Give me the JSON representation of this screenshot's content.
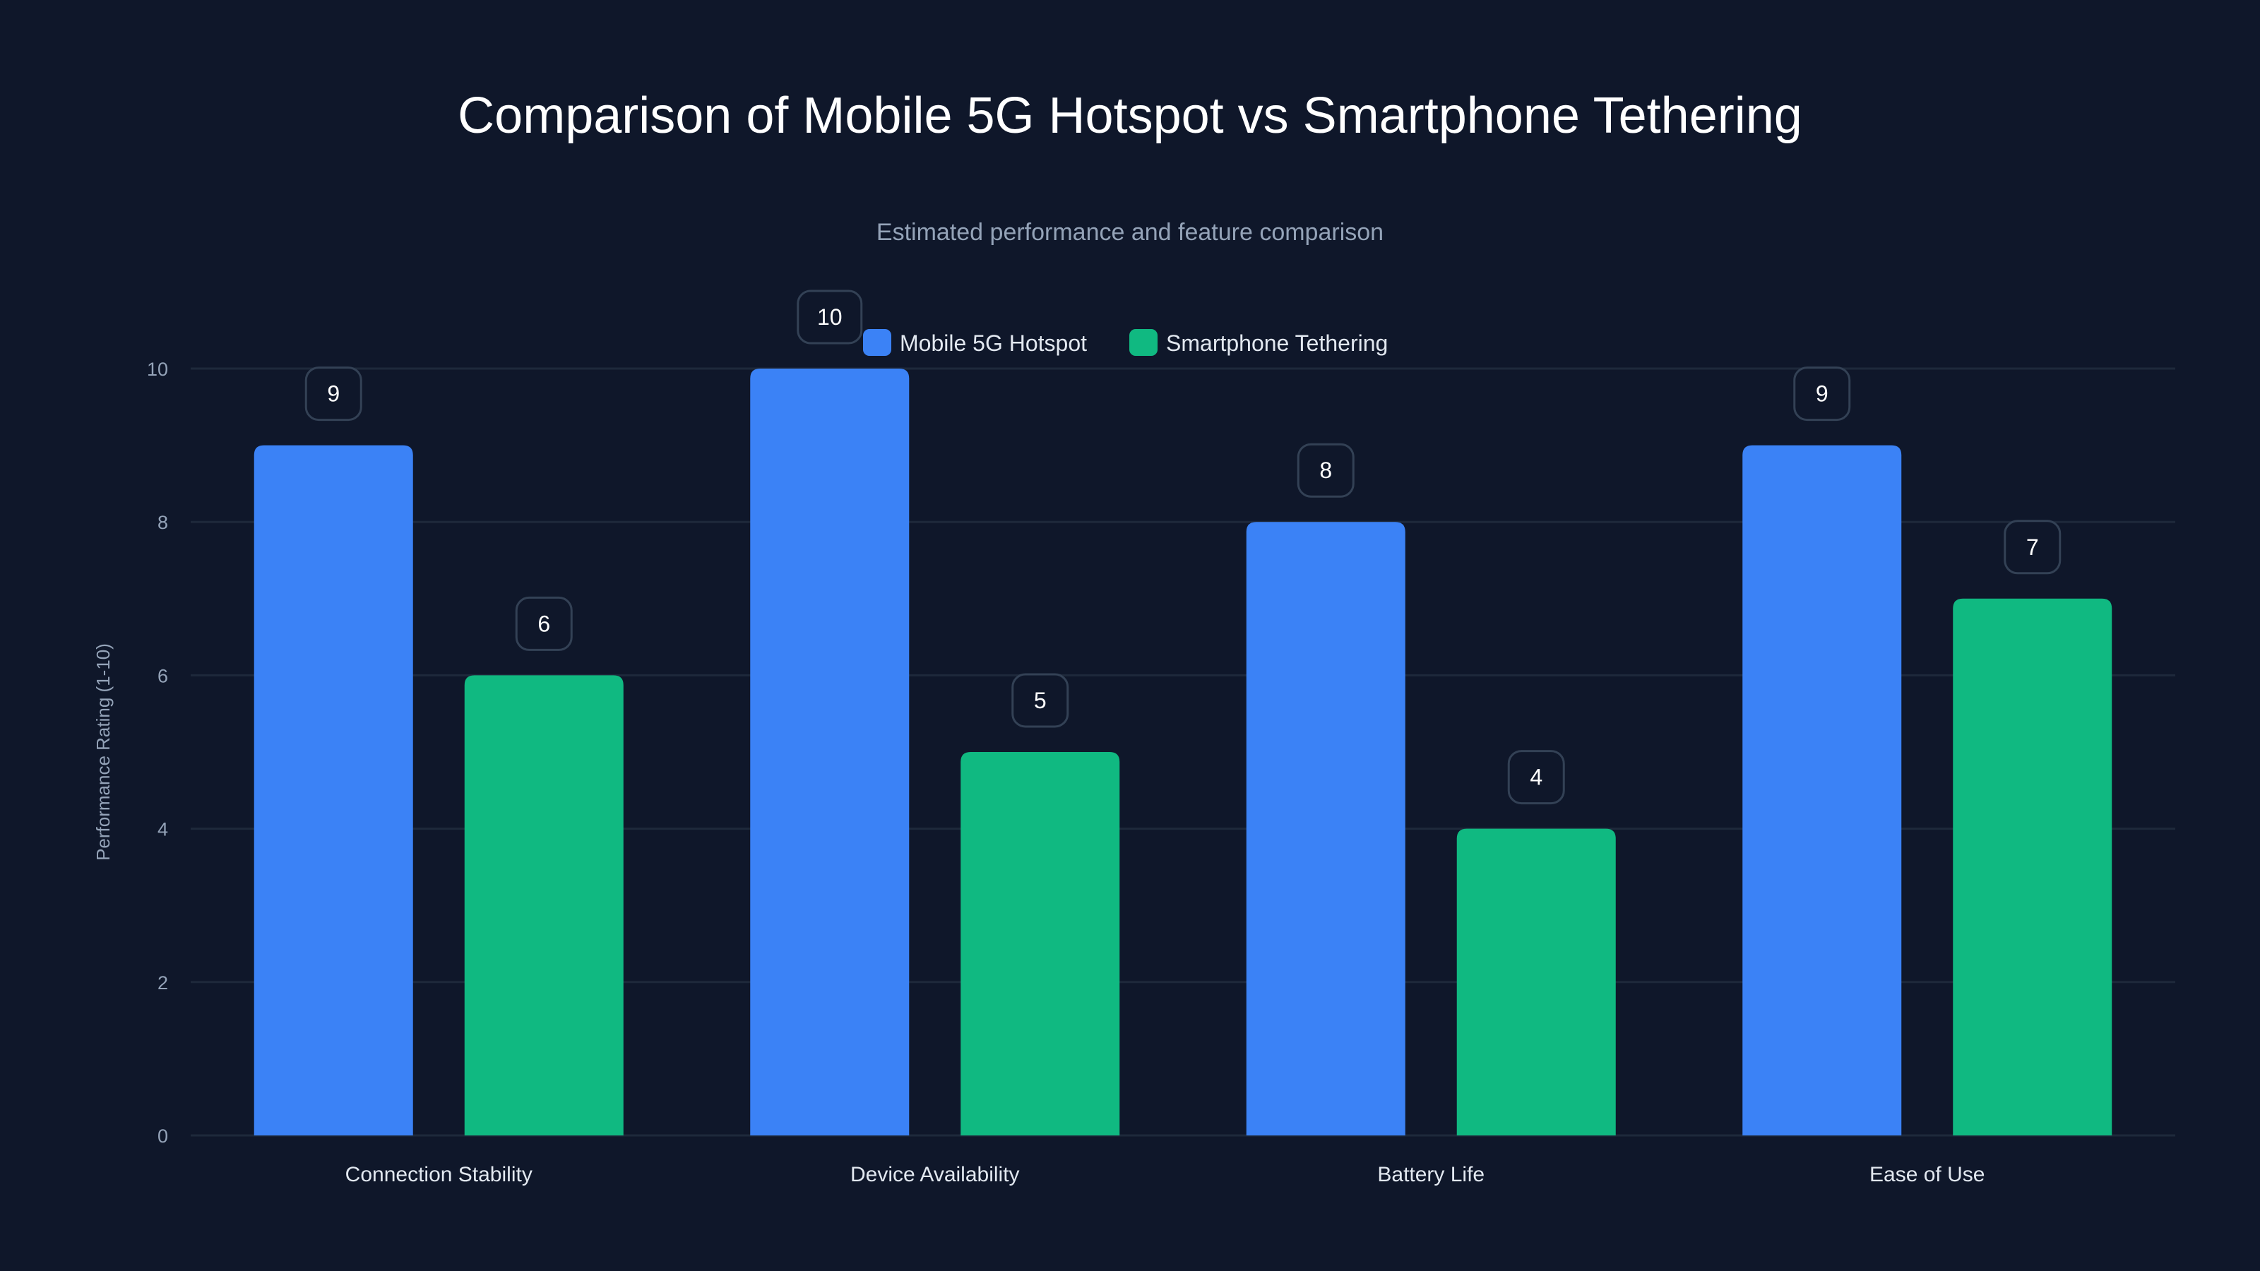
{
  "chart_data": {
    "type": "bar",
    "title": "Comparison of Mobile 5G Hotspot vs Smartphone Tethering",
    "subtitle": "Estimated performance and feature comparison",
    "xlabel": "",
    "ylabel": "Performance Rating (1-10)",
    "ylim": [
      0,
      10
    ],
    "yticks": [
      0,
      2,
      4,
      6,
      8,
      10
    ],
    "grid": true,
    "legend_position": "top-center",
    "categories": [
      "Connection Stability",
      "Device Availability",
      "Battery Life",
      "Ease of Use"
    ],
    "series": [
      {
        "name": "Mobile 5G Hotspot",
        "color": "#3b82f6",
        "values": [
          9,
          10,
          8,
          9
        ]
      },
      {
        "name": "Smartphone Tethering",
        "color": "#10b981",
        "values": [
          6,
          5,
          4,
          7
        ]
      }
    ]
  }
}
